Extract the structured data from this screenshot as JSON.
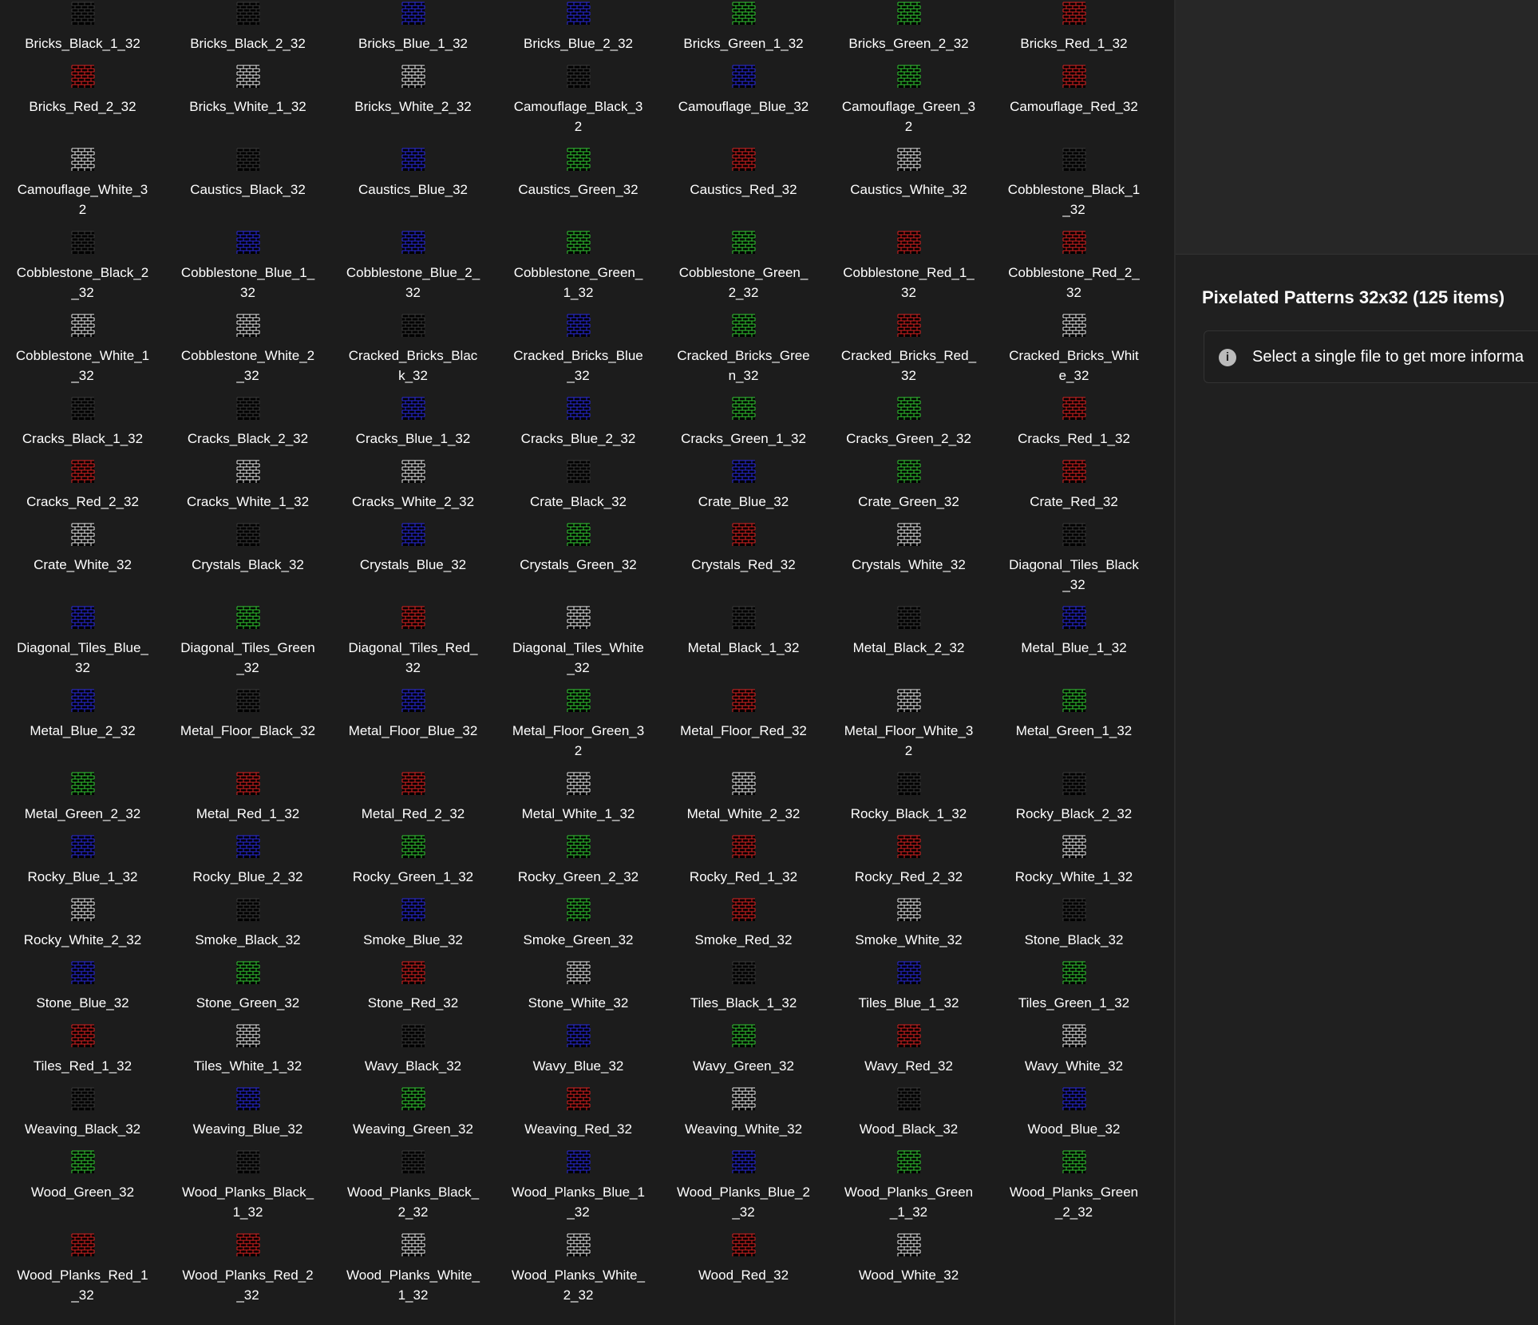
{
  "items": [
    "Bricks_Black_1_32",
    "Bricks_Black_2_32",
    "Bricks_Blue_1_32",
    "Bricks_Blue_2_32",
    "Bricks_Green_1_32",
    "Bricks_Green_2_32",
    "Bricks_Red_1_32",
    "Bricks_Red_2_32",
    "Bricks_White_1_32",
    "Bricks_White_2_32",
    "Camouflage_Black_32",
    "Camouflage_Blue_32",
    "Camouflage_Green_32",
    "Camouflage_Red_32",
    "Camouflage_White_32",
    "Caustics_Black_32",
    "Caustics_Blue_32",
    "Caustics_Green_32",
    "Caustics_Red_32",
    "Caustics_White_32",
    "Cobblestone_Black_1_32",
    "Cobblestone_Black_2_32",
    "Cobblestone_Blue_1_32",
    "Cobblestone_Blue_2_32",
    "Cobblestone_Green_1_32",
    "Cobblestone_Green_2_32",
    "Cobblestone_Red_1_32",
    "Cobblestone_Red_2_32",
    "Cobblestone_White_1_32",
    "Cobblestone_White_2_32",
    "Cracked_Bricks_Black_32",
    "Cracked_Bricks_Blue_32",
    "Cracked_Bricks_Green_32",
    "Cracked_Bricks_Red_32",
    "Cracked_Bricks_White_32",
    "Cracks_Black_1_32",
    "Cracks_Black_2_32",
    "Cracks_Blue_1_32",
    "Cracks_Blue_2_32",
    "Cracks_Green_1_32",
    "Cracks_Green_2_32",
    "Cracks_Red_1_32",
    "Cracks_Red_2_32",
    "Cracks_White_1_32",
    "Cracks_White_2_32",
    "Crate_Black_32",
    "Crate_Blue_32",
    "Crate_Green_32",
    "Crate_Red_32",
    "Crate_White_32",
    "Crystals_Black_32",
    "Crystals_Blue_32",
    "Crystals_Green_32",
    "Crystals_Red_32",
    "Crystals_White_32",
    "Diagonal_Tiles_Black_32",
    "Diagonal_Tiles_Blue_32",
    "Diagonal_Tiles_Green_32",
    "Diagonal_Tiles_Red_32",
    "Diagonal_Tiles_White_32",
    "Metal_Black_1_32",
    "Metal_Black_2_32",
    "Metal_Blue_1_32",
    "Metal_Blue_2_32",
    "Metal_Floor_Black_32",
    "Metal_Floor_Blue_32",
    "Metal_Floor_Green_32",
    "Metal_Floor_Red_32",
    "Metal_Floor_White_32",
    "Metal_Green_1_32",
    "Metal_Green_2_32",
    "Metal_Red_1_32",
    "Metal_Red_2_32",
    "Metal_White_1_32",
    "Metal_White_2_32",
    "Rocky_Black_1_32",
    "Rocky_Black_2_32",
    "Rocky_Blue_1_32",
    "Rocky_Blue_2_32",
    "Rocky_Green_1_32",
    "Rocky_Green_2_32",
    "Rocky_Red_1_32",
    "Rocky_Red_2_32",
    "Rocky_White_1_32",
    "Rocky_White_2_32",
    "Smoke_Black_32",
    "Smoke_Blue_32",
    "Smoke_Green_32",
    "Smoke_Red_32",
    "Smoke_White_32",
    "Stone_Black_32",
    "Stone_Blue_32",
    "Stone_Green_32",
    "Stone_Red_32",
    "Stone_White_32",
    "Tiles_Black_1_32",
    "Tiles_Blue_1_32",
    "Tiles_Green_1_32",
    "Tiles_Red_1_32",
    "Tiles_White_1_32",
    "Wavy_Black_32",
    "Wavy_Blue_32",
    "Wavy_Green_32",
    "Wavy_Red_32",
    "Wavy_White_32",
    "Weaving_Black_32",
    "Weaving_Blue_32",
    "Weaving_Green_32",
    "Weaving_Red_32",
    "Weaving_White_32",
    "Wood_Black_32",
    "Wood_Blue_32",
    "Wood_Green_32",
    "Wood_Planks_Black_1_32",
    "Wood_Planks_Black_2_32",
    "Wood_Planks_Blue_1_32",
    "Wood_Planks_Blue_2_32",
    "Wood_Planks_Green_1_32",
    "Wood_Planks_Green_2_32",
    "Wood_Planks_Red_1_32",
    "Wood_Planks_Red_2_32",
    "Wood_Planks_White_1_32",
    "Wood_Planks_White_2_32",
    "Wood_Red_32",
    "Wood_White_32"
  ],
  "details": {
    "title": "Pixelated Patterns 32x32 (125 items)",
    "info": "Select a single file to get more informa"
  }
}
